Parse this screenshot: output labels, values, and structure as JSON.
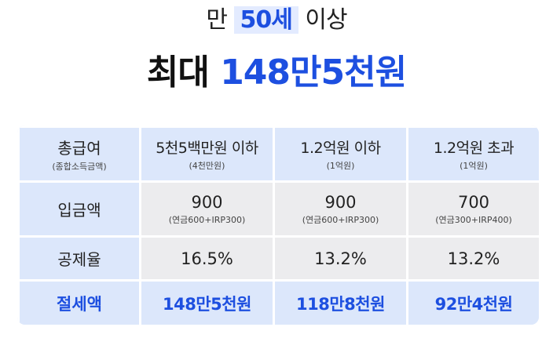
{
  "headline": {
    "prefix": "만",
    "highlight": "50세",
    "suffix": "이상",
    "main_prefix": "최대",
    "main_amount": "148만5천원"
  },
  "table": {
    "header": {
      "label_main": "총급여",
      "label_sub": "(종합소득금액)",
      "columns": [
        {
          "main": "5천5백만원 이하",
          "sub": "(4천만원)"
        },
        {
          "main": "1.2억원 이하",
          "sub": "(1억원)"
        },
        {
          "main": "1.2억원 초과",
          "sub": "(1억원)"
        }
      ]
    },
    "deposit": {
      "label": "입금액",
      "values": [
        {
          "main": "900",
          "sub": "(연금600+IRP300)"
        },
        {
          "main": "900",
          "sub": "(연금600+IRP300)"
        },
        {
          "main": "700",
          "sub": "(연금300+IRP400)"
        }
      ]
    },
    "rate": {
      "label": "공제율",
      "values": [
        "16.5%",
        "13.2%",
        "13.2%"
      ]
    },
    "saving": {
      "label": "절세액",
      "values": [
        "148만5천원",
        "118만8천원",
        "92만4천원"
      ]
    }
  }
}
